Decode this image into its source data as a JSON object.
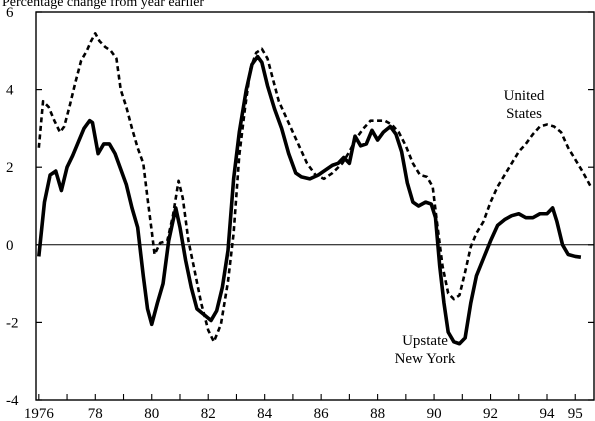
{
  "chart_data": {
    "type": "line",
    "subtitle": "Percentage change from year earlier",
    "xlim": [
      1975.9,
      1995.7
    ],
    "ylim": [
      -4,
      6
    ],
    "y_ticks": [
      -4,
      -2,
      0,
      2,
      4,
      6
    ],
    "y_tick_labels": [
      "-4",
      "-2",
      "0",
      "2",
      "4",
      "6"
    ],
    "x_ticks": [
      1976,
      1978,
      1980,
      1982,
      1984,
      1986,
      1988,
      1990,
      1992,
      1994,
      1995
    ],
    "x_tick_labels": [
      "1976",
      "78",
      "80",
      "82",
      "84",
      "86",
      "88",
      "90",
      "92",
      "94",
      "95"
    ],
    "zero_line": true,
    "grid": false,
    "annotations": [
      {
        "id": "us",
        "lines": [
          "United",
          "States"
        ]
      },
      {
        "id": "ny",
        "lines": [
          "Upstate",
          "New York"
        ]
      }
    ],
    "series": [
      {
        "id": "us",
        "style": "dashed",
        "color": "#000000",
        "points": [
          [
            1976.0,
            2.5
          ],
          [
            1976.15,
            3.7
          ],
          [
            1976.35,
            3.55
          ],
          [
            1976.55,
            3.2
          ],
          [
            1976.75,
            2.9
          ],
          [
            1976.9,
            3.05
          ],
          [
            1977.1,
            3.6
          ],
          [
            1977.3,
            4.2
          ],
          [
            1977.5,
            4.75
          ],
          [
            1977.7,
            5.0
          ],
          [
            1977.85,
            5.25
          ],
          [
            1978.0,
            5.45
          ],
          [
            1978.15,
            5.25
          ],
          [
            1978.35,
            5.1
          ],
          [
            1978.55,
            5.0
          ],
          [
            1978.75,
            4.8
          ],
          [
            1978.9,
            4.0
          ],
          [
            1979.1,
            3.55
          ],
          [
            1979.3,
            3.0
          ],
          [
            1979.5,
            2.5
          ],
          [
            1979.7,
            2.1
          ],
          [
            1979.85,
            1.2
          ],
          [
            1980.0,
            0.35
          ],
          [
            1980.1,
            -0.25
          ],
          [
            1980.3,
            0.05
          ],
          [
            1980.55,
            0.1
          ],
          [
            1980.75,
            0.75
          ],
          [
            1980.95,
            1.65
          ],
          [
            1981.1,
            1.2
          ],
          [
            1981.3,
            0.1
          ],
          [
            1981.5,
            -0.6
          ],
          [
            1981.75,
            -1.5
          ],
          [
            1982.0,
            -2.2
          ],
          [
            1982.2,
            -2.5
          ],
          [
            1982.45,
            -2.05
          ],
          [
            1982.7,
            -0.95
          ],
          [
            1982.9,
            0.3
          ],
          [
            1983.1,
            2.3
          ],
          [
            1983.3,
            3.5
          ],
          [
            1983.5,
            4.55
          ],
          [
            1983.7,
            4.95
          ],
          [
            1983.9,
            5.05
          ],
          [
            1984.1,
            4.8
          ],
          [
            1984.3,
            4.25
          ],
          [
            1984.5,
            3.7
          ],
          [
            1984.75,
            3.3
          ],
          [
            1985.0,
            2.9
          ],
          [
            1985.25,
            2.5
          ],
          [
            1985.5,
            2.1
          ],
          [
            1985.8,
            1.8
          ],
          [
            1986.1,
            1.7
          ],
          [
            1986.4,
            1.85
          ],
          [
            1986.75,
            2.1
          ],
          [
            1987.0,
            2.4
          ],
          [
            1987.25,
            2.75
          ],
          [
            1987.5,
            3.0
          ],
          [
            1987.75,
            3.2
          ],
          [
            1988.0,
            3.2
          ],
          [
            1988.25,
            3.2
          ],
          [
            1988.5,
            3.1
          ],
          [
            1988.75,
            2.9
          ],
          [
            1989.0,
            2.55
          ],
          [
            1989.25,
            2.1
          ],
          [
            1989.5,
            1.8
          ],
          [
            1989.75,
            1.75
          ],
          [
            1989.95,
            1.5
          ],
          [
            1990.1,
            0.6
          ],
          [
            1990.3,
            -0.55
          ],
          [
            1990.5,
            -1.25
          ],
          [
            1990.7,
            -1.4
          ],
          [
            1990.9,
            -1.3
          ],
          [
            1991.1,
            -0.7
          ],
          [
            1991.3,
            -0.05
          ],
          [
            1991.5,
            0.3
          ],
          [
            1991.75,
            0.6
          ],
          [
            1992.0,
            1.1
          ],
          [
            1992.25,
            1.5
          ],
          [
            1992.5,
            1.8
          ],
          [
            1992.75,
            2.1
          ],
          [
            1993.0,
            2.4
          ],
          [
            1993.25,
            2.6
          ],
          [
            1993.5,
            2.85
          ],
          [
            1993.75,
            3.05
          ],
          [
            1994.0,
            3.1
          ],
          [
            1994.25,
            3.05
          ],
          [
            1994.5,
            2.9
          ],
          [
            1994.75,
            2.5
          ],
          [
            1995.0,
            2.2
          ],
          [
            1995.25,
            1.9
          ],
          [
            1995.55,
            1.5
          ]
        ]
      },
      {
        "id": "ny",
        "style": "solid",
        "color": "#000000",
        "points": [
          [
            1976.0,
            -0.3
          ],
          [
            1976.2,
            1.1
          ],
          [
            1976.4,
            1.8
          ],
          [
            1976.6,
            1.9
          ],
          [
            1976.8,
            1.4
          ],
          [
            1977.0,
            2.0
          ],
          [
            1977.2,
            2.3
          ],
          [
            1977.4,
            2.65
          ],
          [
            1977.6,
            3.0
          ],
          [
            1977.8,
            3.2
          ],
          [
            1977.9,
            3.15
          ],
          [
            1978.1,
            2.35
          ],
          [
            1978.3,
            2.6
          ],
          [
            1978.5,
            2.6
          ],
          [
            1978.7,
            2.35
          ],
          [
            1978.9,
            1.95
          ],
          [
            1979.1,
            1.55
          ],
          [
            1979.3,
            0.95
          ],
          [
            1979.5,
            0.45
          ],
          [
            1979.7,
            -0.8
          ],
          [
            1979.85,
            -1.65
          ],
          [
            1980.0,
            -2.05
          ],
          [
            1980.2,
            -1.5
          ],
          [
            1980.4,
            -1.0
          ],
          [
            1980.6,
            0.1
          ],
          [
            1980.85,
            0.95
          ],
          [
            1981.0,
            0.45
          ],
          [
            1981.2,
            -0.4
          ],
          [
            1981.4,
            -1.1
          ],
          [
            1981.6,
            -1.65
          ],
          [
            1981.85,
            -1.8
          ],
          [
            1982.1,
            -1.95
          ],
          [
            1982.3,
            -1.7
          ],
          [
            1982.5,
            -1.1
          ],
          [
            1982.7,
            -0.15
          ],
          [
            1982.9,
            1.7
          ],
          [
            1983.1,
            2.9
          ],
          [
            1983.35,
            4.0
          ],
          [
            1983.55,
            4.65
          ],
          [
            1983.75,
            4.85
          ],
          [
            1983.9,
            4.7
          ],
          [
            1984.1,
            4.1
          ],
          [
            1984.35,
            3.5
          ],
          [
            1984.6,
            3.0
          ],
          [
            1984.85,
            2.35
          ],
          [
            1985.1,
            1.85
          ],
          [
            1985.3,
            1.75
          ],
          [
            1985.6,
            1.7
          ],
          [
            1985.9,
            1.8
          ],
          [
            1986.2,
            1.95
          ],
          [
            1986.4,
            2.05
          ],
          [
            1986.6,
            2.1
          ],
          [
            1986.8,
            2.25
          ],
          [
            1987.0,
            2.1
          ],
          [
            1987.2,
            2.8
          ],
          [
            1987.4,
            2.55
          ],
          [
            1987.6,
            2.6
          ],
          [
            1987.8,
            2.95
          ],
          [
            1988.0,
            2.7
          ],
          [
            1988.2,
            2.9
          ],
          [
            1988.45,
            3.05
          ],
          [
            1988.65,
            2.85
          ],
          [
            1988.85,
            2.4
          ],
          [
            1989.05,
            1.6
          ],
          [
            1989.25,
            1.1
          ],
          [
            1989.45,
            1.0
          ],
          [
            1989.7,
            1.1
          ],
          [
            1989.9,
            1.05
          ],
          [
            1990.05,
            0.7
          ],
          [
            1990.2,
            -0.55
          ],
          [
            1990.35,
            -1.5
          ],
          [
            1990.5,
            -2.25
          ],
          [
            1990.7,
            -2.5
          ],
          [
            1990.9,
            -2.55
          ],
          [
            1991.1,
            -2.4
          ],
          [
            1991.3,
            -1.5
          ],
          [
            1991.5,
            -0.8
          ],
          [
            1991.75,
            -0.35
          ],
          [
            1992.0,
            0.1
          ],
          [
            1992.25,
            0.5
          ],
          [
            1992.5,
            0.65
          ],
          [
            1992.75,
            0.75
          ],
          [
            1993.0,
            0.8
          ],
          [
            1993.25,
            0.7
          ],
          [
            1993.5,
            0.7
          ],
          [
            1993.75,
            0.8
          ],
          [
            1994.0,
            0.8
          ],
          [
            1994.2,
            0.95
          ],
          [
            1994.35,
            0.6
          ],
          [
            1994.55,
            0.0
          ],
          [
            1994.75,
            -0.25
          ],
          [
            1995.0,
            -0.3
          ],
          [
            1995.2,
            -0.32
          ]
        ]
      }
    ]
  }
}
